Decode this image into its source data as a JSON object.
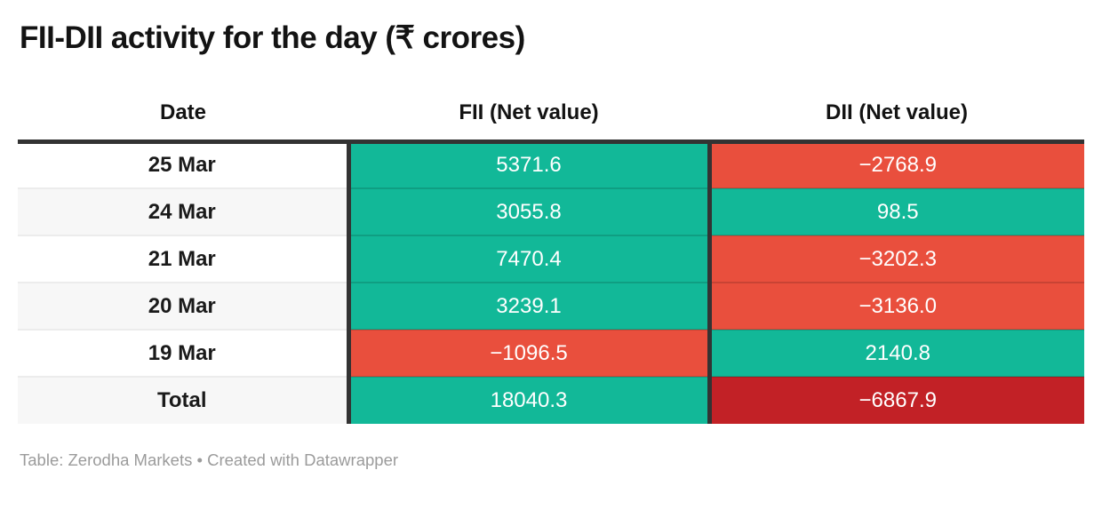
{
  "title": "FII-DII activity for the day (₹ crores)",
  "colors": {
    "positive": "#12b898",
    "negative": "#e94f3d",
    "negative_strong": "#c22126",
    "border_dark": "#333333",
    "row_alt": "#f7f7f7",
    "footer_text": "#9b9b9b",
    "title_text": "#131313"
  },
  "table": {
    "columns": [
      {
        "label": "Date"
      },
      {
        "label": "FII (Net value)"
      },
      {
        "label": "DII (Net value)"
      }
    ],
    "rows": [
      {
        "date": "25 Mar",
        "fii": "5371.6",
        "fii_sentiment": "positive",
        "dii": "−2768.9",
        "dii_sentiment": "negative"
      },
      {
        "date": "24 Mar",
        "fii": "3055.8",
        "fii_sentiment": "positive",
        "dii": "98.5",
        "dii_sentiment": "positive"
      },
      {
        "date": "21 Mar",
        "fii": "7470.4",
        "fii_sentiment": "positive",
        "dii": "−3202.3",
        "dii_sentiment": "negative"
      },
      {
        "date": "20 Mar",
        "fii": "3239.1",
        "fii_sentiment": "positive",
        "dii": "−3136.0",
        "dii_sentiment": "negative"
      },
      {
        "date": "19 Mar",
        "fii": "−1096.5",
        "fii_sentiment": "negative",
        "dii": "2140.8",
        "dii_sentiment": "positive"
      },
      {
        "date": "Total",
        "fii": "18040.3",
        "fii_sentiment": "positive",
        "dii": "−6867.9",
        "dii_sentiment": "negative-strong"
      }
    ]
  },
  "footer": {
    "source": "Table: Zerodha Markets",
    "separator": " • ",
    "credit": "Created with Datawrapper"
  },
  "chart_data": {
    "type": "table",
    "title": "FII-DII activity for the day (₹ crores)",
    "columns": [
      "Date",
      "FII (Net value)",
      "DII (Net value)"
    ],
    "rows": [
      [
        "25 Mar",
        5371.6,
        -2768.9
      ],
      [
        "24 Mar",
        3055.8,
        98.5
      ],
      [
        "21 Mar",
        7470.4,
        -3202.3
      ],
      [
        "20 Mar",
        3239.1,
        -3136.0
      ],
      [
        "19 Mar",
        -1096.5,
        2140.8
      ],
      [
        "Total",
        18040.3,
        -6867.9
      ]
    ],
    "cell_color_rule": "positive values green, negative values red, Total-row negative dark red; white value text",
    "source": "Table: Zerodha Markets • Created with Datawrapper"
  }
}
